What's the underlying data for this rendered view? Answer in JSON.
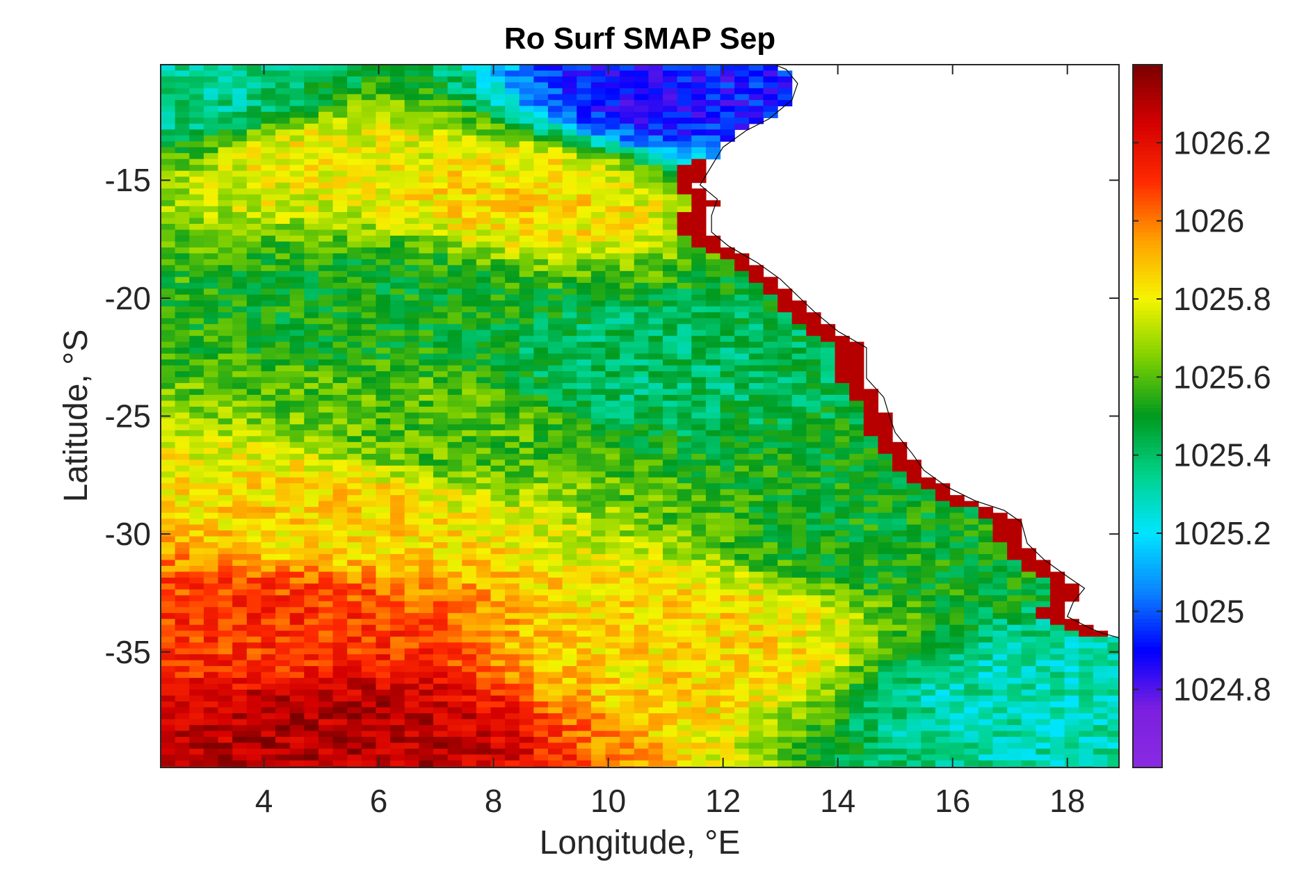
{
  "chart_data": {
    "type": "heatmap",
    "title": "Ro Surf SMAP Sep",
    "xlabel": "Longitude, °E",
    "ylabel": "Latitude, °S",
    "xlim": [
      2.2,
      18.9
    ],
    "ylim": [
      -39.9,
      -10.1
    ],
    "x_ticks": [
      4,
      6,
      8,
      10,
      12,
      14,
      16,
      18
    ],
    "y_ticks": [
      -15,
      -20,
      -25,
      -30,
      -35
    ],
    "x_tick_labels": [
      "4",
      "6",
      "8",
      "10",
      "12",
      "14",
      "16",
      "18"
    ],
    "y_tick_labels": [
      "-15",
      "-20",
      "-25",
      "-30",
      "-35"
    ],
    "colorbar": {
      "clim": [
        1024.6,
        1026.4
      ],
      "ticks": [
        1024.8,
        1025,
        1025.2,
        1025.4,
        1025.6,
        1025.8,
        1026,
        1026.2
      ],
      "tick_labels": [
        "1024.8",
        "1025",
        "1025.2",
        "1025.4",
        "1025.6",
        "1025.8",
        "1026",
        "1026.2"
      ],
      "colormap": [
        "#8a2be2",
        "#7b1fe0",
        "#0000ff",
        "#0a84ff",
        "#00e5ff",
        "#00d28a",
        "#009a1e",
        "#7fd000",
        "#f5f500",
        "#ffa000",
        "#ff2a00",
        "#d40000",
        "#7a0000"
      ]
    },
    "grid": false,
    "coastline": [
      [
        12.9,
        -10.1
      ],
      [
        13.1,
        -10.3
      ],
      [
        13.3,
        -10.9
      ],
      [
        13.2,
        -11.6
      ],
      [
        12.8,
        -12.4
      ],
      [
        12.4,
        -12.9
      ],
      [
        12.0,
        -13.6
      ],
      [
        11.8,
        -14.4
      ],
      [
        11.6,
        -15.2
      ],
      [
        11.9,
        -15.8
      ],
      [
        11.8,
        -16.5
      ],
      [
        11.8,
        -17.2
      ],
      [
        12.1,
        -17.8
      ],
      [
        12.6,
        -18.5
      ],
      [
        13.0,
        -19.2
      ],
      [
        13.3,
        -19.9
      ],
      [
        13.6,
        -20.6
      ],
      [
        14.0,
        -21.4
      ],
      [
        14.5,
        -22.1
      ],
      [
        14.5,
        -22.8
      ],
      [
        14.5,
        -23.4
      ],
      [
        14.8,
        -24.2
      ],
      [
        14.9,
        -25.0
      ],
      [
        15.0,
        -25.7
      ],
      [
        15.3,
        -26.6
      ],
      [
        15.5,
        -27.3
      ],
      [
        15.9,
        -28.0
      ],
      [
        16.4,
        -28.6
      ],
      [
        16.9,
        -29.0
      ],
      [
        17.2,
        -29.5
      ],
      [
        17.3,
        -30.4
      ],
      [
        17.6,
        -31.1
      ],
      [
        18.0,
        -31.8
      ],
      [
        18.3,
        -32.3
      ],
      [
        18.1,
        -32.9
      ],
      [
        18.0,
        -33.5
      ],
      [
        18.4,
        -34.0
      ],
      [
        18.6,
        -34.2
      ],
      [
        18.9,
        -34.4
      ]
    ],
    "field_description_points": [
      {
        "lon": 3.0,
        "lat": -11.5,
        "value": 1025.35
      },
      {
        "lon": 5.0,
        "lat": -14.0,
        "value": 1025.8
      },
      {
        "lon": 8.5,
        "lat": -15.5,
        "value": 1025.85
      },
      {
        "lon": 11.0,
        "lat": -11.5,
        "value": 1024.9
      },
      {
        "lon": 6.0,
        "lat": -20.0,
        "value": 1025.5
      },
      {
        "lon": 10.5,
        "lat": -23.0,
        "value": 1025.4
      },
      {
        "lon": 7.0,
        "lat": -25.5,
        "value": 1025.6
      },
      {
        "lon": 5.0,
        "lat": -29.0,
        "value": 1025.85
      },
      {
        "lon": 4.0,
        "lat": -34.0,
        "value": 1026.1
      },
      {
        "lon": 5.0,
        "lat": -38.5,
        "value": 1026.3
      },
      {
        "lon": 11.5,
        "lat": -34.5,
        "value": 1025.85
      },
      {
        "lon": 15.0,
        "lat": -30.0,
        "value": 1025.5
      },
      {
        "lon": 17.5,
        "lat": -37.0,
        "value": 1025.3
      }
    ]
  }
}
